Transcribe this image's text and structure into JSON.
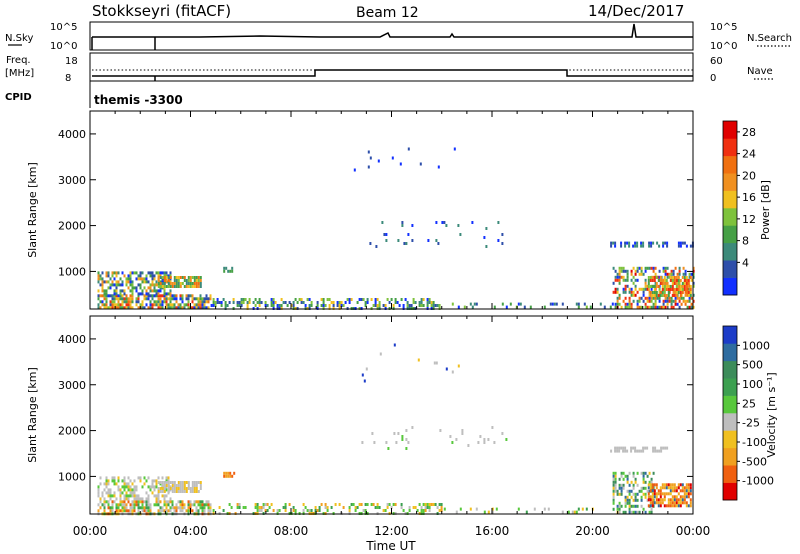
{
  "header": {
    "station": "Stokkseyri (fitACF)",
    "beam": "Beam 12",
    "date": "14/Dec/2017"
  },
  "panels": {
    "nsky": {
      "label": "N.Sky",
      "left_ticks": [
        "10^5",
        "10^0"
      ],
      "right_ticks": [
        "10^5",
        "10^0"
      ],
      "right_label": "N.Search"
    },
    "freq": {
      "label_line1": "Freq.",
      "label_line2": "[MHz]",
      "left_ticks": [
        "18",
        "8"
      ],
      "right_ticks": [
        "60",
        "0"
      ],
      "right_label": "Nave"
    },
    "cpid": {
      "label": "CPID",
      "value": "themis -3300"
    }
  },
  "chart_data": [
    {
      "type": "heatmap",
      "name": "power",
      "ylabel": "Slant Range [km]",
      "x_ticks": [
        "00:00",
        "04:00",
        "08:00",
        "12:00",
        "16:00",
        "20:00",
        "00:00"
      ],
      "y_ticks": [
        1000,
        2000,
        3000,
        4000
      ],
      "ylim": [
        180,
        4500
      ],
      "colorbar": {
        "label": "Power [dB]",
        "ticks": [
          "4",
          "8",
          "12",
          "16",
          "20",
          "24",
          "28"
        ],
        "colors": [
          "#1230ff",
          "#2e4faa",
          "#3c8a7a",
          "#46a046",
          "#7ec23c",
          "#f0c020",
          "#f09020",
          "#f07010",
          "#f03010",
          "#e00000"
        ]
      },
      "regions": [
        {
          "t0": 0.3,
          "t1": 4.8,
          "r0": 200,
          "r1": 500,
          "palette": [
            0,
            1,
            2,
            3,
            4,
            5,
            6,
            7,
            8
          ],
          "density": 0.75
        },
        {
          "t0": 0.3,
          "t1": 3.2,
          "r0": 500,
          "r1": 1000,
          "palette": [
            0,
            1,
            2,
            3,
            4,
            5,
            6
          ],
          "density": 0.55
        },
        {
          "t0": 2.7,
          "t1": 4.4,
          "r0": 700,
          "r1": 900,
          "palette": [
            2,
            3,
            4,
            5,
            6,
            7
          ],
          "density": 0.8
        },
        {
          "t0": 4.8,
          "t1": 14.0,
          "r0": 200,
          "r1": 420,
          "palette": [
            0,
            1,
            2,
            3,
            4,
            5
          ],
          "density": 0.4
        },
        {
          "t0": 14.0,
          "t1": 20.8,
          "r0": 200,
          "r1": 320,
          "palette": [
            0,
            1,
            2,
            3,
            4
          ],
          "density": 0.18
        },
        {
          "t0": 20.8,
          "t1": 24.0,
          "r0": 220,
          "r1": 1100,
          "palette": [
            0,
            1,
            2,
            3,
            4,
            5,
            6,
            7,
            8,
            9
          ],
          "density": 0.5
        },
        {
          "t0": 22.2,
          "t1": 23.9,
          "r0": 450,
          "r1": 900,
          "palette": [
            3,
            4,
            5,
            6,
            7,
            8
          ],
          "density": 0.7
        },
        {
          "t0": 20.7,
          "t1": 23.0,
          "r0": 1550,
          "r1": 1650,
          "palette": [
            0,
            1,
            2
          ],
          "density": 0.55
        },
        {
          "t0": 23.4,
          "t1": 24.0,
          "r0": 1550,
          "r1": 1650,
          "palette": [
            0,
            1
          ],
          "density": 0.5
        },
        {
          "t0": 10.8,
          "t1": 16.6,
          "r0": 1550,
          "r1": 2100,
          "palette": [
            0,
            1,
            2
          ],
          "density": 0.05
        },
        {
          "t0": 10.5,
          "t1": 14.8,
          "r0": 3100,
          "r1": 3900,
          "palette": [
            0,
            1
          ],
          "density": 0.02
        },
        {
          "t0": 5.3,
          "t1": 5.7,
          "r0": 1000,
          "r1": 1100,
          "palette": [
            2,
            3
          ],
          "density": 0.7
        }
      ]
    },
    {
      "type": "heatmap",
      "name": "velocity",
      "ylabel": "Slant Range [km]",
      "xlabel": "Time UT",
      "x_ticks": [
        "00:00",
        "04:00",
        "08:00",
        "12:00",
        "16:00",
        "20:00",
        "00:00"
      ],
      "y_ticks": [
        1000,
        2000,
        3000,
        4000
      ],
      "ylim": [
        180,
        4500
      ],
      "colorbar": {
        "label": "Velocity [m s⁻¹]",
        "ticks": [
          "1000",
          "500",
          "100",
          "25",
          "-25",
          "-100",
          "-500",
          "-1000"
        ],
        "colors": [
          "#1c3cc8",
          "#2e6ca0",
          "#3c8c5a",
          "#3ca050",
          "#58c83c",
          "#bebebe",
          "#f0c020",
          "#f0a020",
          "#f06010",
          "#e00000"
        ]
      },
      "regions": [
        {
          "t0": 0.3,
          "t1": 4.8,
          "r0": 200,
          "r1": 480,
          "palette": [
            5,
            5,
            5,
            4,
            3,
            6,
            7,
            8
          ],
          "density": 0.7
        },
        {
          "t0": 0.3,
          "t1": 3.2,
          "r0": 480,
          "r1": 1000,
          "palette": [
            5,
            5,
            5,
            4,
            6
          ],
          "density": 0.5
        },
        {
          "t0": 2.7,
          "t1": 4.4,
          "r0": 650,
          "r1": 900,
          "palette": [
            5,
            5,
            5,
            6
          ],
          "density": 0.85
        },
        {
          "t0": 4.8,
          "t1": 14.0,
          "r0": 200,
          "r1": 420,
          "palette": [
            5,
            4,
            4,
            3,
            6,
            7
          ],
          "density": 0.35
        },
        {
          "t0": 14.0,
          "t1": 20.8,
          "r0": 200,
          "r1": 320,
          "palette": [
            5,
            4,
            3,
            6
          ],
          "density": 0.15
        },
        {
          "t0": 20.8,
          "t1": 22.4,
          "r0": 220,
          "r1": 1100,
          "palette": [
            4,
            3,
            2,
            1,
            6,
            5
          ],
          "density": 0.45
        },
        {
          "t0": 22.2,
          "t1": 23.9,
          "r0": 350,
          "r1": 850,
          "palette": [
            6,
            7,
            8,
            9,
            7,
            8,
            1
          ],
          "density": 0.75
        },
        {
          "t0": 20.7,
          "t1": 23.0,
          "r0": 1550,
          "r1": 1650,
          "palette": [
            5,
            5,
            5
          ],
          "density": 0.55
        },
        {
          "t0": 10.8,
          "t1": 16.6,
          "r0": 1550,
          "r1": 2100,
          "palette": [
            5,
            5,
            4
          ],
          "density": 0.05
        },
        {
          "t0": 10.5,
          "t1": 14.8,
          "r0": 3100,
          "r1": 3900,
          "palette": [
            5,
            6,
            0
          ],
          "density": 0.02
        },
        {
          "t0": 5.3,
          "t1": 5.7,
          "r0": 1000,
          "r1": 1100,
          "palette": [
            7,
            8
          ],
          "density": 0.7
        }
      ]
    }
  ]
}
